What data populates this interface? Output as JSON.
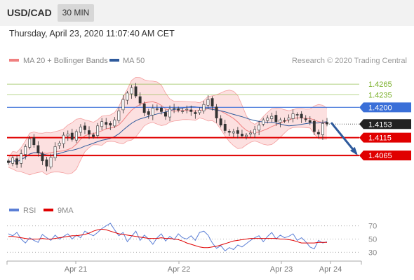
{
  "header": {
    "symbol": "USD/CAD",
    "timeframe": "30 MIN",
    "datetime": "Thursday, April 23, 2020 11:07:40 AM CET"
  },
  "chart_data": {
    "type": "candlestick",
    "legend": [
      {
        "label": "MA 20 + Bollinger Bands",
        "color": "#f08080"
      },
      {
        "label": "MA 50",
        "color": "#2e5a9c"
      }
    ],
    "copyright": "Research © 2020 Trading Central",
    "x_ticks": [
      "Apr 21",
      "Apr 22",
      "Apr 23",
      "Apr 24"
    ],
    "ylim": [
      1.3975,
      1.4285
    ],
    "levels": [
      {
        "value": 1.4265,
        "label": "1.4265",
        "kind": "target",
        "color": "#7ab02a"
      },
      {
        "value": 1.4235,
        "label": "1.4235",
        "kind": "target",
        "color": "#7ab02a"
      },
      {
        "value": 1.42,
        "label": "1.4200",
        "kind": "resistance",
        "color": "#3a6fd8"
      },
      {
        "value": 1.4153,
        "label": "1.4153",
        "kind": "last",
        "color": "#222222"
      },
      {
        "value": 1.4115,
        "label": "1.4115",
        "kind": "support",
        "color": "#e00000"
      },
      {
        "value": 1.4065,
        "label": "1.4065",
        "kind": "support",
        "color": "#e00000"
      }
    ],
    "forecast_arrow": {
      "from": 1.4157,
      "to": 1.407,
      "color": "#2e5a9c"
    },
    "close": [
      1.4045,
      1.4058,
      1.404,
      1.407,
      1.409,
      1.4112,
      1.4095,
      1.4072,
      1.405,
      1.4035,
      1.406,
      1.409,
      1.41,
      1.4122,
      1.4125,
      1.411,
      1.4132,
      1.4145,
      1.4137,
      1.4125,
      1.4118,
      1.4148,
      1.416,
      1.4152,
      1.415,
      1.4165,
      1.419,
      1.4222,
      1.424,
      1.4255,
      1.4232,
      1.4212,
      1.4185,
      1.418,
      1.4198,
      1.4195,
      1.4188,
      1.4175,
      1.4195,
      1.4198,
      1.4192,
      1.419,
      1.4195,
      1.4188,
      1.4182,
      1.4192,
      1.4208,
      1.4222,
      1.4203,
      1.417,
      1.415,
      1.4135,
      1.413,
      1.4132,
      1.4127,
      1.412,
      1.4122,
      1.4128,
      1.4138,
      1.415,
      1.4165,
      1.417,
      1.4175,
      1.416,
      1.4165,
      1.4162,
      1.417,
      1.4182,
      1.4178,
      1.417,
      1.4165,
      1.4158,
      1.4132,
      1.4125,
      1.4155,
      1.4153
    ],
    "rsi": {
      "ticks": [
        70,
        50,
        30
      ],
      "legend": [
        {
          "label": "RSI",
          "color": "#5b7fd6"
        },
        {
          "label": "9MA",
          "color": "#e00000"
        }
      ],
      "rsi": [
        58,
        55,
        60,
        50,
        44,
        52,
        48,
        45,
        57,
        52,
        48,
        56,
        50,
        54,
        58,
        50,
        56,
        52,
        62,
        58,
        55,
        60,
        66,
        70,
        74,
        64,
        55,
        60,
        46,
        54,
        62,
        48,
        56,
        50,
        42,
        52,
        58,
        47,
        54,
        49,
        58,
        52,
        50,
        55,
        48,
        60,
        62,
        56,
        44,
        36,
        40,
        32,
        37,
        34,
        41,
        38,
        43,
        48,
        52,
        55,
        46,
        54,
        60,
        50,
        56,
        52,
        54,
        58,
        48,
        52,
        46,
        38,
        35,
        48,
        44,
        46
      ],
      "ma9": [
        54,
        54,
        53,
        52,
        51,
        50,
        50,
        50,
        51,
        50,
        50,
        51,
        52,
        53,
        54,
        55,
        55,
        56,
        57,
        59,
        62,
        64,
        65,
        64,
        62,
        60,
        58,
        57,
        56,
        55,
        54,
        53,
        52,
        51,
        51,
        51,
        52,
        51,
        51,
        50,
        49,
        47,
        44,
        42,
        40,
        38,
        37,
        37,
        38,
        39,
        41,
        43,
        45,
        47,
        48,
        49,
        50,
        51,
        51,
        51,
        51,
        51,
        51,
        51,
        50,
        50,
        49,
        48,
        46,
        44,
        44,
        44,
        44,
        45,
        45,
        45
      ]
    }
  }
}
